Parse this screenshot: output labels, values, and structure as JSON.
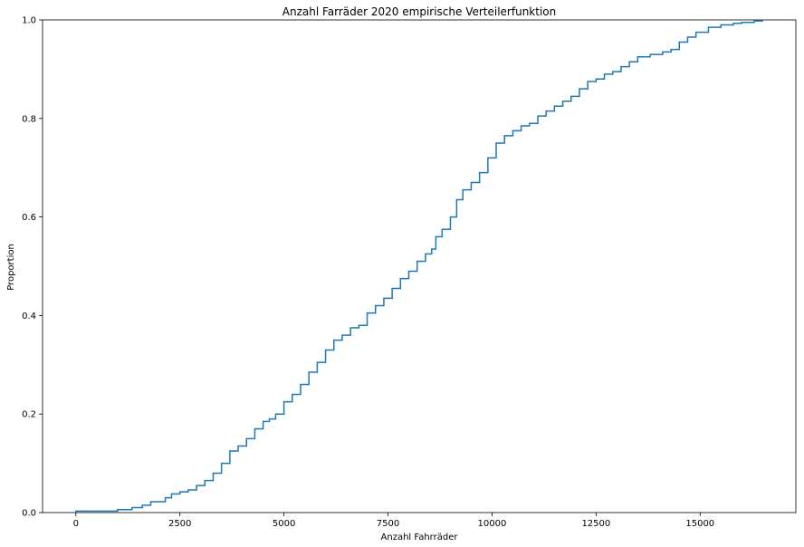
{
  "chart_data": {
    "type": "line",
    "title": "Anzahl Farräder 2020 empirische Verteilerfunktion",
    "xlabel": "Anzahl Fahrräder",
    "ylabel": "Proportion",
    "xlim": [
      -800,
      17300
    ],
    "ylim": [
      0,
      1.0
    ],
    "x_ticks": [
      0,
      2500,
      5000,
      7500,
      10000,
      12500,
      15000
    ],
    "x_tick_labels": [
      "0",
      "2500",
      "5000",
      "7500",
      "10000",
      "12500",
      "15000"
    ],
    "y_ticks": [
      0.0,
      0.2,
      0.4,
      0.6,
      0.8,
      1.0
    ],
    "y_tick_labels": [
      "0.0",
      "0.2",
      "0.4",
      "0.6",
      "0.8",
      "1.0"
    ],
    "grid": false,
    "color": "#1f77b4",
    "drawstyle": "steps-post",
    "series": [
      {
        "x": [
          0,
          1000,
          1350,
          1600,
          1800,
          2150,
          2300,
          2500,
          2700,
          2900,
          3100,
          3300,
          3500,
          3700,
          3900,
          4100,
          4300,
          4500,
          4650,
          4800,
          5000,
          5200,
          5400,
          5600,
          5800,
          6000,
          6200,
          6400,
          6600,
          6800,
          7000,
          7200,
          7400,
          7600,
          7800,
          8000,
          8200,
          8400,
          8550,
          8650,
          8800,
          9000,
          9150,
          9300,
          9500,
          9700,
          9900,
          10100,
          10300,
          10500,
          10700,
          10900,
          11100,
          11300,
          11500,
          11700,
          11900,
          12100,
          12300,
          12500,
          12700,
          12900,
          13100,
          13300,
          13500,
          13800,
          14100,
          14300,
          14500,
          14700,
          14900,
          15200,
          15500,
          15800,
          16000,
          16300,
          16500
        ],
        "y": [
          0.003,
          0.006,
          0.01,
          0.015,
          0.022,
          0.03,
          0.038,
          0.042,
          0.046,
          0.055,
          0.065,
          0.08,
          0.1,
          0.125,
          0.135,
          0.15,
          0.17,
          0.185,
          0.19,
          0.2,
          0.225,
          0.24,
          0.26,
          0.285,
          0.305,
          0.33,
          0.35,
          0.36,
          0.375,
          0.38,
          0.405,
          0.42,
          0.435,
          0.455,
          0.475,
          0.49,
          0.51,
          0.525,
          0.535,
          0.56,
          0.575,
          0.6,
          0.635,
          0.655,
          0.67,
          0.69,
          0.72,
          0.75,
          0.765,
          0.775,
          0.785,
          0.79,
          0.805,
          0.815,
          0.825,
          0.835,
          0.845,
          0.86,
          0.875,
          0.88,
          0.89,
          0.895,
          0.905,
          0.915,
          0.925,
          0.93,
          0.935,
          0.94,
          0.955,
          0.965,
          0.975,
          0.985,
          0.99,
          0.993,
          0.995,
          0.998,
          1.0
        ]
      }
    ]
  }
}
